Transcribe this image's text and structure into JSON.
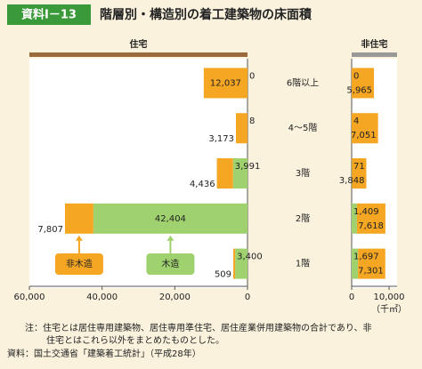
{
  "header": {
    "badge": "資料Ⅰ－13",
    "title": "階層別・構造別の着工建築物の床面積"
  },
  "chart_data": [
    {
      "type": "bar",
      "title": "住宅",
      "orientation": "horizontal",
      "stacked": true,
      "categories": [
        "6階以上",
        "4～5階",
        "3階",
        "2階",
        "1階"
      ],
      "xlim": [
        60000,
        0
      ],
      "xticks": [
        {
          "value": 60000,
          "label": "60,000"
        },
        {
          "value": 40000,
          "label": "40,000"
        },
        {
          "value": 20000,
          "label": "20,000"
        },
        0
      ],
      "title_bar_color": "#9b6a3c",
      "series": [
        {
          "name": "木造",
          "color": "#9fd16e",
          "label_color": "#2e7d32",
          "values": [
            0,
            8,
            3991,
            42404,
            3400
          ],
          "value_labels": [
            "0",
            "8",
            "3,991",
            "42,404",
            "3,400"
          ]
        },
        {
          "name": "非木造",
          "color": "#f5a623",
          "label_color": "#c8102e",
          "values": [
            12037,
            3173,
            4436,
            7807,
            509
          ],
          "value_labels": [
            "12,037",
            "3,173",
            "4,436",
            "7,807",
            "509"
          ]
        }
      ]
    },
    {
      "type": "bar",
      "title": "非住宅",
      "orientation": "horizontal",
      "stacked": true,
      "xlim": [
        0,
        10000
      ],
      "xlabel": "（千㎡）",
      "xticks": [
        0,
        {
          "value": 10000,
          "label": "10,000"
        }
      ],
      "title_bar_color": "#999999",
      "series": [
        {
          "color": "#9fd16e",
          "label_color": "#2e7d32",
          "values": [
            0,
            4,
            71,
            1409,
            1697
          ],
          "value_labels": [
            "0",
            "4",
            "71",
            "1,409",
            "1,697"
          ]
        },
        {
          "color": "#f5a623",
          "label_color": "#c8102e",
          "values": [
            5965,
            7051,
            3848,
            7618,
            7301
          ],
          "value_labels": [
            "5,965",
            "7,051",
            "3,848",
            "7,618",
            "7,301"
          ]
        }
      ]
    }
  ],
  "notes": [
    "注：住宅とは居住専用建築物、居住専用準住宅、居住産業併用建築物の合計であり、非",
    "住宅とはこれら以外をまとめたものとした。",
    "資料：国土交通省「建築着工統計」（平成28年）"
  ]
}
